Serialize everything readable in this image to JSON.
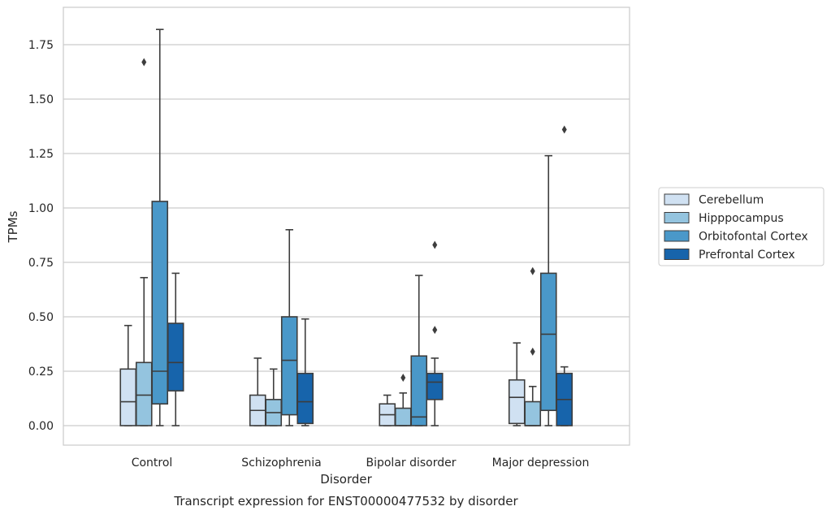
{
  "chart_data": {
    "type": "box",
    "title": "",
    "caption": "Transcript expression for ENST00000477532 by disorder",
    "xlabel": "Disorder",
    "ylabel": "TPMs",
    "ylim": [
      -0.09,
      1.92
    ],
    "yticks": [
      "0.00",
      "0.25",
      "0.50",
      "0.75",
      "1.00",
      "1.25",
      "1.50",
      "1.75"
    ],
    "ytick_values": [
      0,
      0.25,
      0.5,
      0.75,
      1.0,
      1.25,
      1.5,
      1.75
    ],
    "grid": true,
    "legend_position": "right",
    "categories": [
      "Control",
      "Schizophrenia",
      "Bipolar disorder",
      "Major depression"
    ],
    "series": [
      {
        "name": "Cerebellum",
        "color": "#d0e1f2",
        "boxes": [
          {
            "whislo": 0.0,
            "q1": 0.0,
            "med": 0.11,
            "q3": 0.26,
            "whishi": 0.46,
            "fliers": []
          },
          {
            "whislo": 0.0,
            "q1": 0.0,
            "med": 0.07,
            "q3": 0.14,
            "whishi": 0.31,
            "fliers": []
          },
          {
            "whislo": 0.0,
            "q1": 0.0,
            "med": 0.05,
            "q3": 0.1,
            "whishi": 0.14,
            "fliers": []
          },
          {
            "whislo": 0.0,
            "q1": 0.01,
            "med": 0.13,
            "q3": 0.21,
            "whishi": 0.38,
            "fliers": []
          }
        ]
      },
      {
        "name": "Hipppocampus",
        "color": "#94c4df",
        "boxes": [
          {
            "whislo": 0.0,
            "q1": 0.0,
            "med": 0.14,
            "q3": 0.29,
            "whishi": 0.68,
            "fliers": [
              1.67
            ]
          },
          {
            "whislo": 0.0,
            "q1": 0.0,
            "med": 0.06,
            "q3": 0.12,
            "whishi": 0.26,
            "fliers": []
          },
          {
            "whislo": 0.0,
            "q1": 0.0,
            "med": 0.0,
            "q3": 0.08,
            "whishi": 0.15,
            "fliers": [
              0.22
            ]
          },
          {
            "whislo": 0.0,
            "q1": 0.0,
            "med": 0.0,
            "q3": 0.11,
            "whishi": 0.18,
            "fliers": [
              0.34,
              0.71
            ]
          }
        ]
      },
      {
        "name": "Orbitofontal Cortex",
        "color": "#4a98c9",
        "boxes": [
          {
            "whislo": 0.0,
            "q1": 0.1,
            "med": 0.25,
            "q3": 1.03,
            "whishi": 1.82,
            "fliers": []
          },
          {
            "whislo": 0.0,
            "q1": 0.05,
            "med": 0.3,
            "q3": 0.5,
            "whishi": 0.9,
            "fliers": []
          },
          {
            "whislo": 0.0,
            "q1": 0.0,
            "med": 0.04,
            "q3": 0.32,
            "whishi": 0.69,
            "fliers": []
          },
          {
            "whislo": 0.0,
            "q1": 0.07,
            "med": 0.42,
            "q3": 0.7,
            "whishi": 1.24,
            "fliers": []
          }
        ]
      },
      {
        "name": "Prefrontal Cortex",
        "color": "#1764ab",
        "boxes": [
          {
            "whislo": 0.0,
            "q1": 0.16,
            "med": 0.29,
            "q3": 0.47,
            "whishi": 0.7,
            "fliers": []
          },
          {
            "whislo": 0.0,
            "q1": 0.01,
            "med": 0.11,
            "q3": 0.24,
            "whishi": 0.49,
            "fliers": []
          },
          {
            "whislo": 0.0,
            "q1": 0.12,
            "med": 0.2,
            "q3": 0.24,
            "whishi": 0.31,
            "fliers": [
              0.44,
              0.83
            ]
          },
          {
            "whislo": 0.0,
            "q1": 0.0,
            "med": 0.12,
            "q3": 0.24,
            "whishi": 0.27,
            "fliers": [
              1.36
            ]
          }
        ]
      }
    ]
  }
}
